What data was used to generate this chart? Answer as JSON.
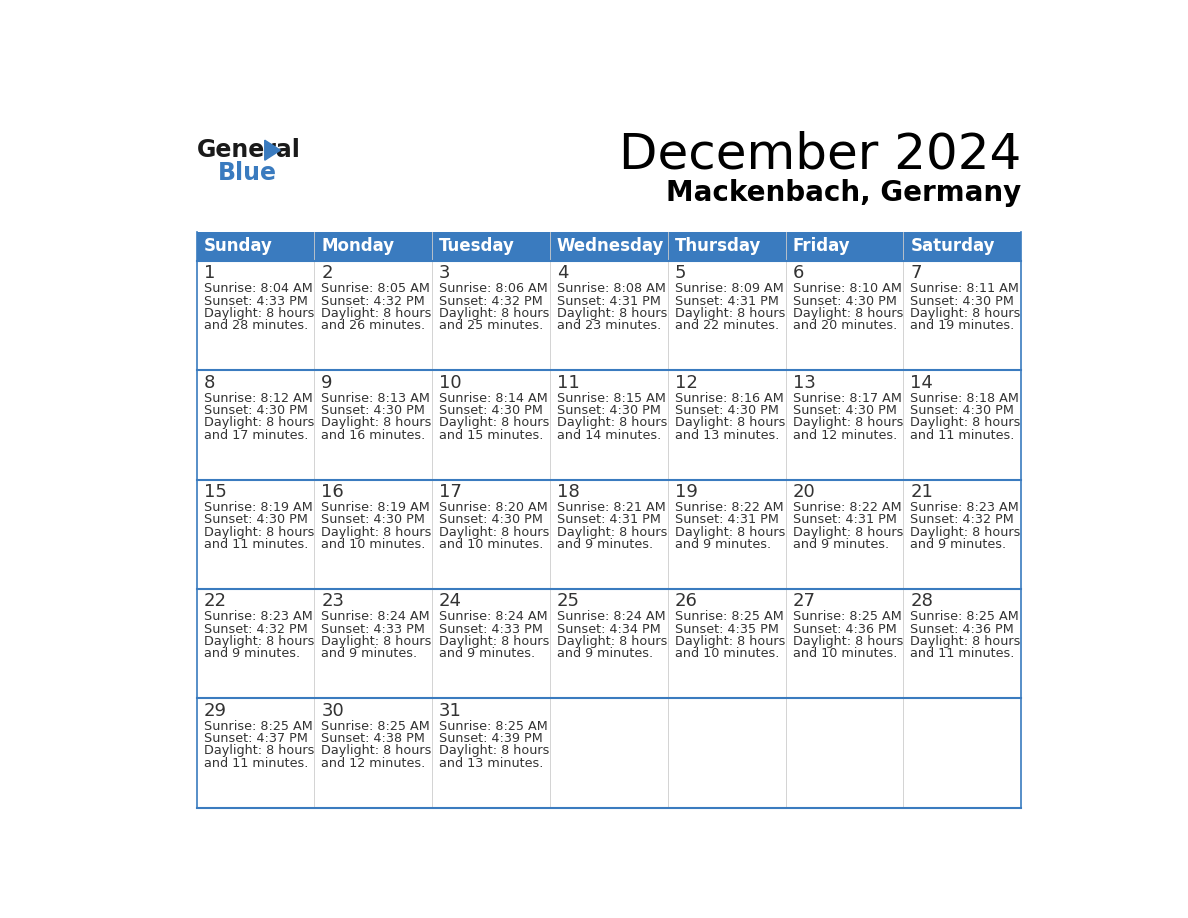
{
  "title": "December 2024",
  "subtitle": "Mackenbach, Germany",
  "header_color": "#3a7bbf",
  "header_text_color": "#ffffff",
  "border_color": "#3a7bbf",
  "text_color": "#333333",
  "days_of_week": [
    "Sunday",
    "Monday",
    "Tuesday",
    "Wednesday",
    "Thursday",
    "Friday",
    "Saturday"
  ],
  "weeks": [
    [
      {
        "day": 1,
        "sunrise": "8:04 AM",
        "sunset": "4:33 PM",
        "daylight_minutes": "28"
      },
      {
        "day": 2,
        "sunrise": "8:05 AM",
        "sunset": "4:32 PM",
        "daylight_minutes": "26"
      },
      {
        "day": 3,
        "sunrise": "8:06 AM",
        "sunset": "4:32 PM",
        "daylight_minutes": "25"
      },
      {
        "day": 4,
        "sunrise": "8:08 AM",
        "sunset": "4:31 PM",
        "daylight_minutes": "23"
      },
      {
        "day": 5,
        "sunrise": "8:09 AM",
        "sunset": "4:31 PM",
        "daylight_minutes": "22"
      },
      {
        "day": 6,
        "sunrise": "8:10 AM",
        "sunset": "4:30 PM",
        "daylight_minutes": "20"
      },
      {
        "day": 7,
        "sunrise": "8:11 AM",
        "sunset": "4:30 PM",
        "daylight_minutes": "19"
      }
    ],
    [
      {
        "day": 8,
        "sunrise": "8:12 AM",
        "sunset": "4:30 PM",
        "daylight_minutes": "17"
      },
      {
        "day": 9,
        "sunrise": "8:13 AM",
        "sunset": "4:30 PM",
        "daylight_minutes": "16"
      },
      {
        "day": 10,
        "sunrise": "8:14 AM",
        "sunset": "4:30 PM",
        "daylight_minutes": "15"
      },
      {
        "day": 11,
        "sunrise": "8:15 AM",
        "sunset": "4:30 PM",
        "daylight_minutes": "14"
      },
      {
        "day": 12,
        "sunrise": "8:16 AM",
        "sunset": "4:30 PM",
        "daylight_minutes": "13"
      },
      {
        "day": 13,
        "sunrise": "8:17 AM",
        "sunset": "4:30 PM",
        "daylight_minutes": "12"
      },
      {
        "day": 14,
        "sunrise": "8:18 AM",
        "sunset": "4:30 PM",
        "daylight_minutes": "11"
      }
    ],
    [
      {
        "day": 15,
        "sunrise": "8:19 AM",
        "sunset": "4:30 PM",
        "daylight_minutes": "11"
      },
      {
        "day": 16,
        "sunrise": "8:19 AM",
        "sunset": "4:30 PM",
        "daylight_minutes": "10"
      },
      {
        "day": 17,
        "sunrise": "8:20 AM",
        "sunset": "4:30 PM",
        "daylight_minutes": "10"
      },
      {
        "day": 18,
        "sunrise": "8:21 AM",
        "sunset": "4:31 PM",
        "daylight_minutes": "9"
      },
      {
        "day": 19,
        "sunrise": "8:22 AM",
        "sunset": "4:31 PM",
        "daylight_minutes": "9"
      },
      {
        "day": 20,
        "sunrise": "8:22 AM",
        "sunset": "4:31 PM",
        "daylight_minutes": "9"
      },
      {
        "day": 21,
        "sunrise": "8:23 AM",
        "sunset": "4:32 PM",
        "daylight_minutes": "9"
      }
    ],
    [
      {
        "day": 22,
        "sunrise": "8:23 AM",
        "sunset": "4:32 PM",
        "daylight_minutes": "9"
      },
      {
        "day": 23,
        "sunrise": "8:24 AM",
        "sunset": "4:33 PM",
        "daylight_minutes": "9"
      },
      {
        "day": 24,
        "sunrise": "8:24 AM",
        "sunset": "4:33 PM",
        "daylight_minutes": "9"
      },
      {
        "day": 25,
        "sunrise": "8:24 AM",
        "sunset": "4:34 PM",
        "daylight_minutes": "9"
      },
      {
        "day": 26,
        "sunrise": "8:25 AM",
        "sunset": "4:35 PM",
        "daylight_minutes": "10"
      },
      {
        "day": 27,
        "sunrise": "8:25 AM",
        "sunset": "4:36 PM",
        "daylight_minutes": "10"
      },
      {
        "day": 28,
        "sunrise": "8:25 AM",
        "sunset": "4:36 PM",
        "daylight_minutes": "11"
      }
    ],
    [
      {
        "day": 29,
        "sunrise": "8:25 AM",
        "sunset": "4:37 PM",
        "daylight_minutes": "11"
      },
      {
        "day": 30,
        "sunrise": "8:25 AM",
        "sunset": "4:38 PM",
        "daylight_minutes": "12"
      },
      {
        "day": 31,
        "sunrise": "8:25 AM",
        "sunset": "4:39 PM",
        "daylight_minutes": "13"
      },
      null,
      null,
      null,
      null
    ]
  ]
}
